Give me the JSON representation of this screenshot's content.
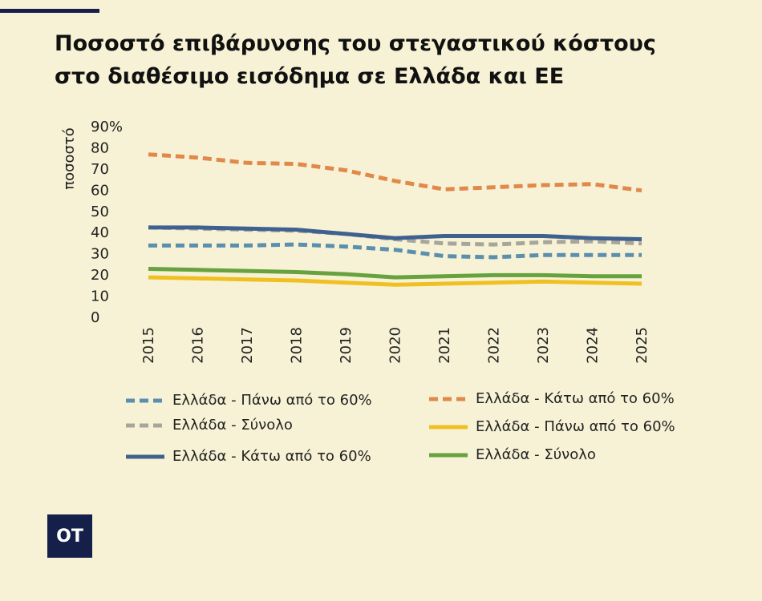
{
  "page": {
    "background": "#f7f2d5",
    "accent": "#15204a"
  },
  "title_lines": [
    "Ποσοστό επιβάρυνσης του στεγαστικού κόστους",
    "στο διαθέσιμο εισόδημα σε Ελλάδα και ΕΕ"
  ],
  "logo": {
    "text": "OT"
  },
  "chart_data": {
    "type": "line",
    "title": "",
    "xlabel": "",
    "ylabel": "ποσοστό",
    "x": [
      "2015",
      "2016",
      "2017",
      "2018",
      "2019",
      "2020",
      "2021",
      "2022",
      "2023",
      "2024",
      "2025"
    ],
    "ylim": [
      0,
      90
    ],
    "yticks": [
      "0",
      "10",
      "20",
      "30",
      "40",
      "50",
      "60",
      "70",
      "80",
      "90%"
    ],
    "grid": false,
    "legend_position": "bottom",
    "series": [
      {
        "name": "Ελλάδα - Πάνω από το 60%",
        "color": "#5a8fae",
        "dash": true,
        "values": [
          33.5,
          33.5,
          33.5,
          34,
          33,
          31.5,
          28.5,
          28,
          29,
          29,
          29
        ]
      },
      {
        "name": "Ελλάδα - Κάτω από το 60%",
        "color": "#e0894a",
        "dash": true,
        "values": [
          76.5,
          75,
          72.5,
          72,
          69,
          64,
          60,
          61,
          62,
          62.5,
          59.5
        ]
      },
      {
        "name": "Ελλάδα - Σύνολο",
        "color": "#a7a69b",
        "dash": true,
        "values": [
          42,
          41.5,
          41,
          40.5,
          39,
          36.5,
          34.5,
          34,
          35,
          35.5,
          34.5
        ]
      },
      {
        "name": "Ελλάδα - Πάνω από το 60%",
        "color": "#f0c022",
        "dash": false,
        "values": [
          18.5,
          18,
          17.5,
          17,
          16,
          15,
          15.5,
          16,
          16.5,
          16,
          15.5
        ]
      },
      {
        "name": "Ελλάδα - Κάτω από το 60%",
        "color": "#3f6190",
        "dash": false,
        "values": [
          42,
          42,
          41.5,
          41,
          39,
          37,
          38,
          38,
          38,
          37,
          36.5
        ]
      },
      {
        "name": "Ελλάδα - Σύνολο",
        "color": "#68a23e",
        "dash": false,
        "values": [
          22.5,
          22,
          21.5,
          21,
          20,
          18.5,
          19,
          19.5,
          19.5,
          19,
          19
        ]
      }
    ]
  }
}
